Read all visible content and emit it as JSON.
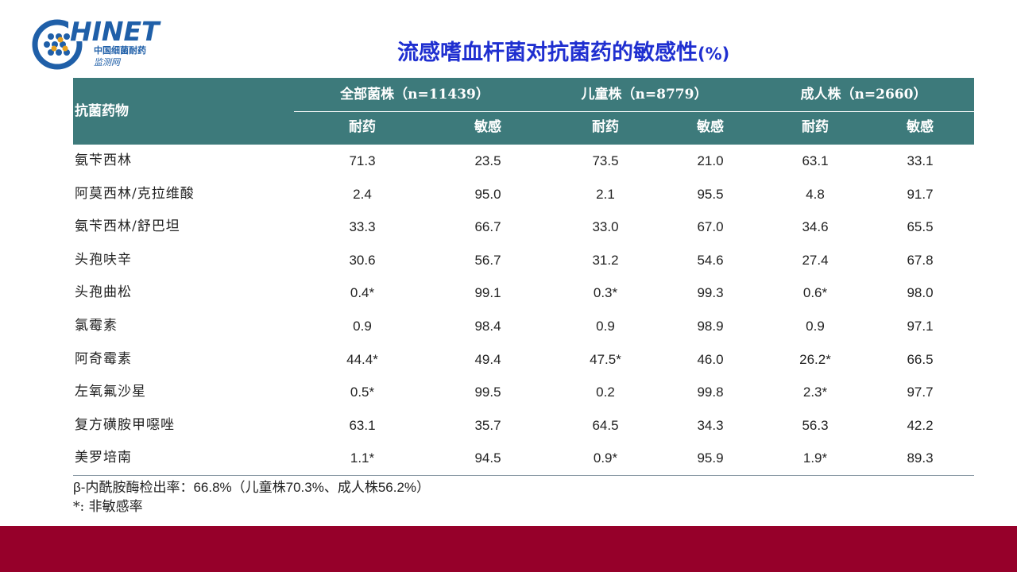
{
  "logo": {
    "wordmark": "HINET",
    "subtitle_line1": "中国细菌耐药",
    "subtitle_line2": "监测网"
  },
  "title": {
    "main": "流感嗜血杆菌对抗菌药的敏感性",
    "suffix": "(%)"
  },
  "table": {
    "drug_header": "抗菌药物",
    "groups": [
      "全部菌株（n=11439）",
      "儿童株（n=8779）",
      "成人株（n=2660）"
    ],
    "subheaders": [
      "耐药",
      "敏感",
      "耐药",
      "敏感",
      "耐药",
      "敏感"
    ],
    "rows": [
      {
        "drug": "氨苄西林",
        "values": [
          "71.3",
          "23.5",
          "73.5",
          "21.0",
          "63.1",
          "33.1"
        ]
      },
      {
        "drug": "阿莫西林/克拉维酸",
        "values": [
          "2.4",
          "95.0",
          "2.1",
          "95.5",
          "4.8",
          "91.7"
        ]
      },
      {
        "drug": "氨苄西林/舒巴坦",
        "values": [
          "33.3",
          "66.7",
          "33.0",
          "67.0",
          "34.6",
          "65.5"
        ]
      },
      {
        "drug": "头孢呋辛",
        "values": [
          "30.6",
          "56.7",
          "31.2",
          "54.6",
          "27.4",
          "67.8"
        ]
      },
      {
        "drug": "头孢曲松",
        "values": [
          "0.4*",
          "99.1",
          "0.3*",
          "99.3",
          "0.6*",
          "98.0"
        ]
      },
      {
        "drug": "氯霉素",
        "values": [
          "0.9",
          "98.4",
          "0.9",
          "98.9",
          "0.9",
          "97.1"
        ]
      },
      {
        "drug": "阿奇霉素",
        "values": [
          "44.4*",
          "49.4",
          "47.5*",
          "46.0",
          "26.2*",
          "66.5"
        ]
      },
      {
        "drug": "左氧氟沙星",
        "values": [
          "0.5*",
          "99.5",
          "0.2",
          "99.8",
          "2.3*",
          "97.7"
        ]
      },
      {
        "drug": "复方磺胺甲噁唑",
        "values": [
          "63.1",
          "35.7",
          "64.5",
          "34.3",
          "56.3",
          "42.2"
        ]
      },
      {
        "drug": "美罗培南",
        "values": [
          "1.1*",
          "94.5",
          "0.9*",
          "95.9",
          "1.9*",
          "89.3"
        ]
      }
    ]
  },
  "notes": {
    "line1": "β-内酰胺酶检出率：66.8%（儿童株70.3%、成人株56.2%）",
    "line2": "*: 非敏感率"
  },
  "colors": {
    "header_bg": "#3d7a7b",
    "title": "#1f2fd0",
    "footer_bar": "#96002a",
    "logo": "#1f5fa8"
  }
}
